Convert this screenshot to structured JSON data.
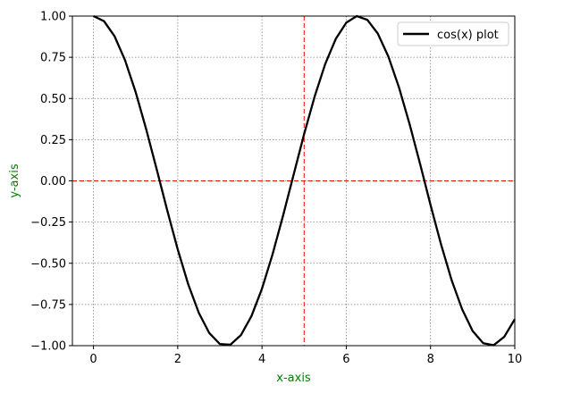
{
  "chart_data": {
    "type": "line",
    "xlabel": "x-axis",
    "ylabel": "y-axis",
    "xlim": [
      -0.5,
      10
    ],
    "ylim": [
      -1.0,
      1.0
    ],
    "x_ticks": [
      0,
      2,
      4,
      6,
      8,
      10
    ],
    "x_tick_labels": [
      "0",
      "2",
      "4",
      "6",
      "8",
      "10"
    ],
    "y_ticks": [
      1.0,
      0.75,
      0.5,
      0.25,
      0.0,
      -0.25,
      -0.5,
      -0.75,
      -1.0
    ],
    "y_tick_labels": [
      "1.00",
      "0.75",
      "0.50",
      "0.25",
      "0.00",
      "−0.25",
      "−0.50",
      "−0.75",
      "−1.00"
    ],
    "grid": true,
    "grid_style": "dotted",
    "legend_position": "top-right",
    "series": [
      {
        "name": "cos(x) plot",
        "color": "#000000",
        "x": [
          0.0,
          0.25,
          0.5,
          0.75,
          1.0,
          1.25,
          1.5,
          1.75,
          2.0,
          2.25,
          2.5,
          2.75,
          3.0,
          3.25,
          3.5,
          3.75,
          4.0,
          4.25,
          4.5,
          4.75,
          5.0,
          5.25,
          5.5,
          5.75,
          6.0,
          6.25,
          6.5,
          6.75,
          7.0,
          7.25,
          7.5,
          7.75,
          8.0,
          8.25,
          8.5,
          8.75,
          9.0,
          9.25,
          9.5,
          9.75,
          10.0
        ],
        "y": [
          1.0,
          0.969,
          0.878,
          0.732,
          0.54,
          0.315,
          0.071,
          -0.178,
          -0.416,
          -0.628,
          -0.801,
          -0.924,
          -0.99,
          -0.994,
          -0.936,
          -0.821,
          -0.654,
          -0.446,
          -0.211,
          0.037,
          0.284,
          0.512,
          0.709,
          0.861,
          0.96,
          1.0,
          0.977,
          0.893,
          0.754,
          0.568,
          0.347,
          0.105,
          -0.146,
          -0.386,
          -0.602,
          -0.779,
          -0.911,
          -0.985,
          -0.997,
          -0.946,
          -0.839
        ]
      }
    ],
    "reference_lines": [
      {
        "orientation": "horizontal",
        "value": 0.0,
        "color": "#ff0000",
        "style": "dashed"
      },
      {
        "orientation": "vertical",
        "value": 5,
        "color": "#ff0000",
        "style": "dashed"
      }
    ],
    "label_color": "#008000"
  }
}
